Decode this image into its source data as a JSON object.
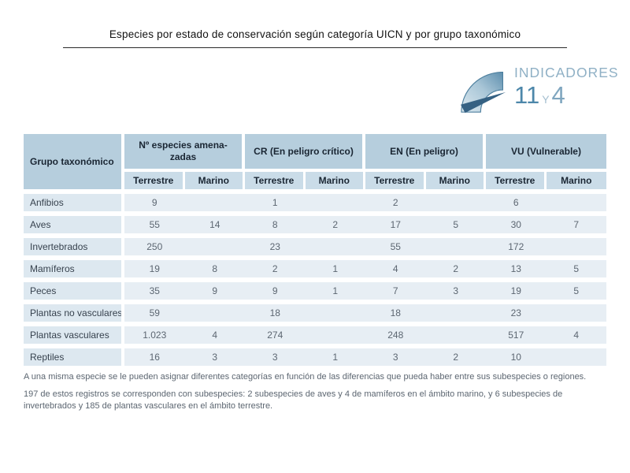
{
  "title": "Especies por estado de conservación según categoría UICN y por grupo taxonómico",
  "logo": {
    "name": "INDICADORES",
    "number_left": "11",
    "conjunction": "Y",
    "number_right": "4"
  },
  "table": {
    "corner_header": "Grupo taxonómico",
    "groups": [
      {
        "label": "Nº especies amena-\nzadas"
      },
      {
        "label": "CR (En peligro crítico)"
      },
      {
        "label": "EN (En peligro)"
      },
      {
        "label": "VU (Vulnerable)"
      }
    ],
    "subheaders": [
      "Terrestre",
      "Marino",
      "Terrestre",
      "Marino",
      "Terrestre",
      "Marino",
      "Terrestre",
      "Marino"
    ],
    "rows": [
      {
        "label": "Anfibios",
        "values": [
          "9",
          "",
          "1",
          "",
          "2",
          "",
          "6",
          ""
        ]
      },
      {
        "label": "Aves",
        "values": [
          "55",
          "14",
          "8",
          "2",
          "17",
          "5",
          "30",
          "7"
        ]
      },
      {
        "label": "Invertebrados",
        "values": [
          "250",
          "",
          "23",
          "",
          "55",
          "",
          "172",
          ""
        ]
      },
      {
        "label": "Mamíferos",
        "values": [
          "19",
          "8",
          "2",
          "1",
          "4",
          "2",
          "13",
          "5"
        ]
      },
      {
        "label": "Peces",
        "values": [
          "35",
          "9",
          "9",
          "1",
          "7",
          "3",
          "19",
          "5"
        ]
      },
      {
        "label": "Plantas no vasculares",
        "values": [
          "59",
          "",
          "18",
          "",
          "18",
          "",
          "23",
          ""
        ]
      },
      {
        "label": "Plantas vasculares",
        "values": [
          "1.023",
          "4",
          "274",
          "",
          "248",
          "",
          "517",
          "4"
        ]
      },
      {
        "label": "Reptiles",
        "values": [
          "16",
          "3",
          "3",
          "1",
          "3",
          "2",
          "10",
          ""
        ]
      }
    ]
  },
  "footnotes": [
    "A una misma especie se le pueden asignar diferentes categorías en función de las diferencias que pueda haber entre sus subespecies o regiones.",
    "197 de estos registros se corresponden con subespecies: 2 subespecies de aves y 4 de mamíferos en el ámbito marino, y 6 subespecies de invertebrados y 185 de plantas vasculares en el ámbito terrestre."
  ],
  "colors": {
    "header_bg": "#b6cedd",
    "subheader_bg": "#cadce8",
    "label_cell_bg": "#dde8f0",
    "value_cell_bg": "#e7eef4",
    "header_text": "#1a2633",
    "label_text": "#37424e",
    "value_text": "#5c6671",
    "footer_text": "#5c6671",
    "title_text": "#121212",
    "logo_text": "#8fb0c5",
    "logo_num_left": "#4d87aa",
    "logo_num_right": "#7fa6bf",
    "logo_y": "#a5bfd0",
    "gauge_dark": "#5e8fae",
    "gauge_light": "#dce9f0",
    "gauge_edge": "#4d7f9e",
    "needle": "#356183"
  }
}
